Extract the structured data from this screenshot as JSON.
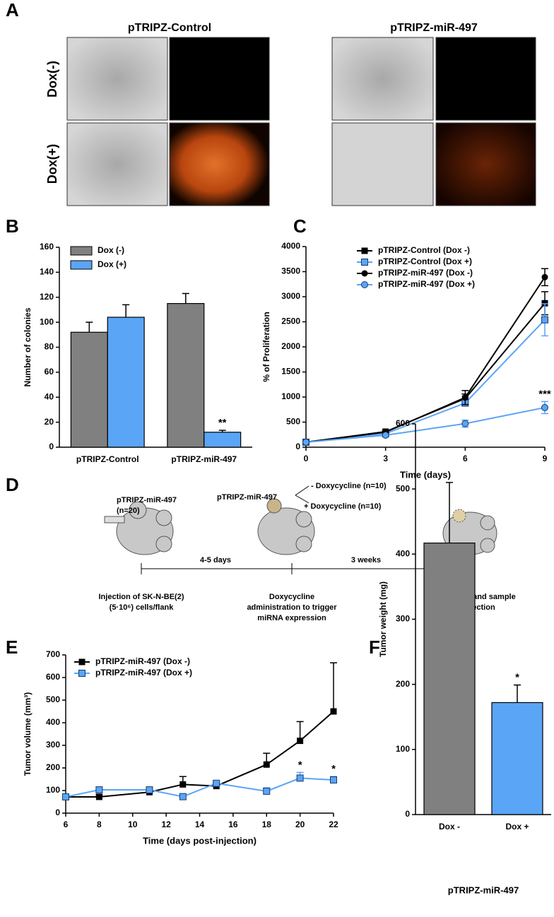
{
  "panels": {
    "a": "A",
    "b": "B",
    "c": "C",
    "d": "D",
    "e": "E",
    "f": "F"
  },
  "panel_a": {
    "columns": [
      "pTRIPZ-Control",
      "pTRIPZ-miR-497"
    ],
    "rows": [
      "Dox(-)",
      "Dox(+)"
    ]
  },
  "panel_d": {
    "group": "pTRIPZ-miR-497",
    "n": "(n=20)",
    "construct": "pTRIPZ-miR-497",
    "minus": "- Doxycycline (n=10)",
    "plus": "+ Doxycycline (n=10)",
    "interval1": "4-5 days",
    "interval2": "3 weeks",
    "step1": [
      "Injection of SK-N-BE(2)",
      "(5·10⁶) cells/flank"
    ],
    "step2": [
      "Doxycycline",
      "administration to trigger",
      "miRNA expression"
    ],
    "step3": [
      "Sacrifice and sample",
      "collection"
    ]
  },
  "chart_data": [
    {
      "type": "bar",
      "ylabel": "Number of colonies",
      "categories": [
        "pTRIPZ-Control",
        "pTRIPZ-miR-497"
      ],
      "series": [
        {
          "name": "Dox (-)",
          "color": "#808080",
          "values": [
            92,
            115
          ],
          "errors": [
            8,
            8
          ]
        },
        {
          "name": "Dox (+)",
          "color": "#5aa5f5",
          "values": [
            104,
            12
          ],
          "errors": [
            10,
            1.5
          ]
        }
      ],
      "ylim": [
        0,
        160
      ],
      "yticks": [
        0,
        20,
        40,
        60,
        80,
        100,
        120,
        140,
        160
      ],
      "legend": "upper left",
      "annotations": [
        "**"
      ]
    },
    {
      "type": "line",
      "xlabel": "Time (days)",
      "ylabel": "% of Proliferation",
      "x": [
        0,
        3,
        6,
        9
      ],
      "series": [
        {
          "name": "pTRIPZ-Control  (Dox -)",
          "color": "#000000",
          "marker": "square",
          "values": [
            100,
            310,
            970,
            2870
          ],
          "errors": [
            0,
            20,
            90,
            230
          ]
        },
        {
          "name": "pTRIPZ-Control  (Dox +)",
          "color": "#5aa5f5",
          "marker": "square",
          "values": [
            100,
            270,
            880,
            2540
          ],
          "errors": [
            0,
            20,
            60,
            320
          ]
        },
        {
          "name": "pTRIPZ-miR-497 (Dox -)",
          "color": "#000000",
          "marker": "circle",
          "values": [
            100,
            300,
            990,
            3390
          ],
          "errors": [
            0,
            20,
            140,
            170
          ]
        },
        {
          "name": "pTRIPZ-miR-497 (Dox +)",
          "color": "#5aa5f5",
          "marker": "circle",
          "values": [
            100,
            240,
            470,
            790
          ],
          "errors": [
            0,
            20,
            70,
            120
          ]
        }
      ],
      "xlim": [
        0,
        9
      ],
      "xticks": [
        0,
        3,
        6,
        9
      ],
      "ylim": [
        0,
        4000
      ],
      "yticks": [
        0,
        500,
        1000,
        1500,
        2000,
        2500,
        3000,
        3500,
        4000
      ],
      "legend": "upper left",
      "error_bars": "both",
      "annotations": [
        "***"
      ]
    },
    {
      "type": "line",
      "xlabel": "Time (days post-injection)",
      "ylabel": "Tumor volume (mm³)",
      "x": [
        6,
        8,
        11,
        13,
        15,
        18,
        20,
        22
      ],
      "series": [
        {
          "name": "pTRIPZ-miR-497 (Dox -)",
          "color": "#000000",
          "marker": "square",
          "values": [
            72,
            72,
            93,
            127,
            120,
            215,
            320,
            450
          ],
          "errors": [
            0,
            8,
            8,
            35,
            10,
            50,
            85,
            215
          ]
        },
        {
          "name": "pTRIPZ-miR-497 (Dox +)",
          "color": "#5aa5f5",
          "marker": "square",
          "values": [
            72,
            103,
            103,
            73,
            132,
            97,
            155,
            147
          ],
          "errors": [
            0,
            0,
            8,
            0,
            10,
            15,
            25,
            15
          ]
        }
      ],
      "xlim": [
        6,
        22
      ],
      "xticks": [
        6,
        8,
        10,
        12,
        14,
        16,
        18,
        20,
        22
      ],
      "ylim": [
        0,
        700
      ],
      "yticks": [
        0,
        100,
        200,
        300,
        400,
        500,
        600,
        700
      ],
      "legend": "upper left",
      "error_bars": "up",
      "annotations": [
        "*",
        "*"
      ]
    },
    {
      "type": "bar",
      "xlabel": "pTRIPZ-miR-497",
      "ylabel": "Tumor weight (mg)",
      "categories": [
        "Dox -",
        "Dox +"
      ],
      "values": [
        417,
        172
      ],
      "errors": [
        93,
        27
      ],
      "colors": [
        "#808080",
        "#5aa5f5"
      ],
      "ylim": [
        0,
        600
      ],
      "yticks": [
        0,
        100,
        200,
        300,
        400,
        500,
        600
      ],
      "annotations": [
        "*"
      ]
    }
  ]
}
